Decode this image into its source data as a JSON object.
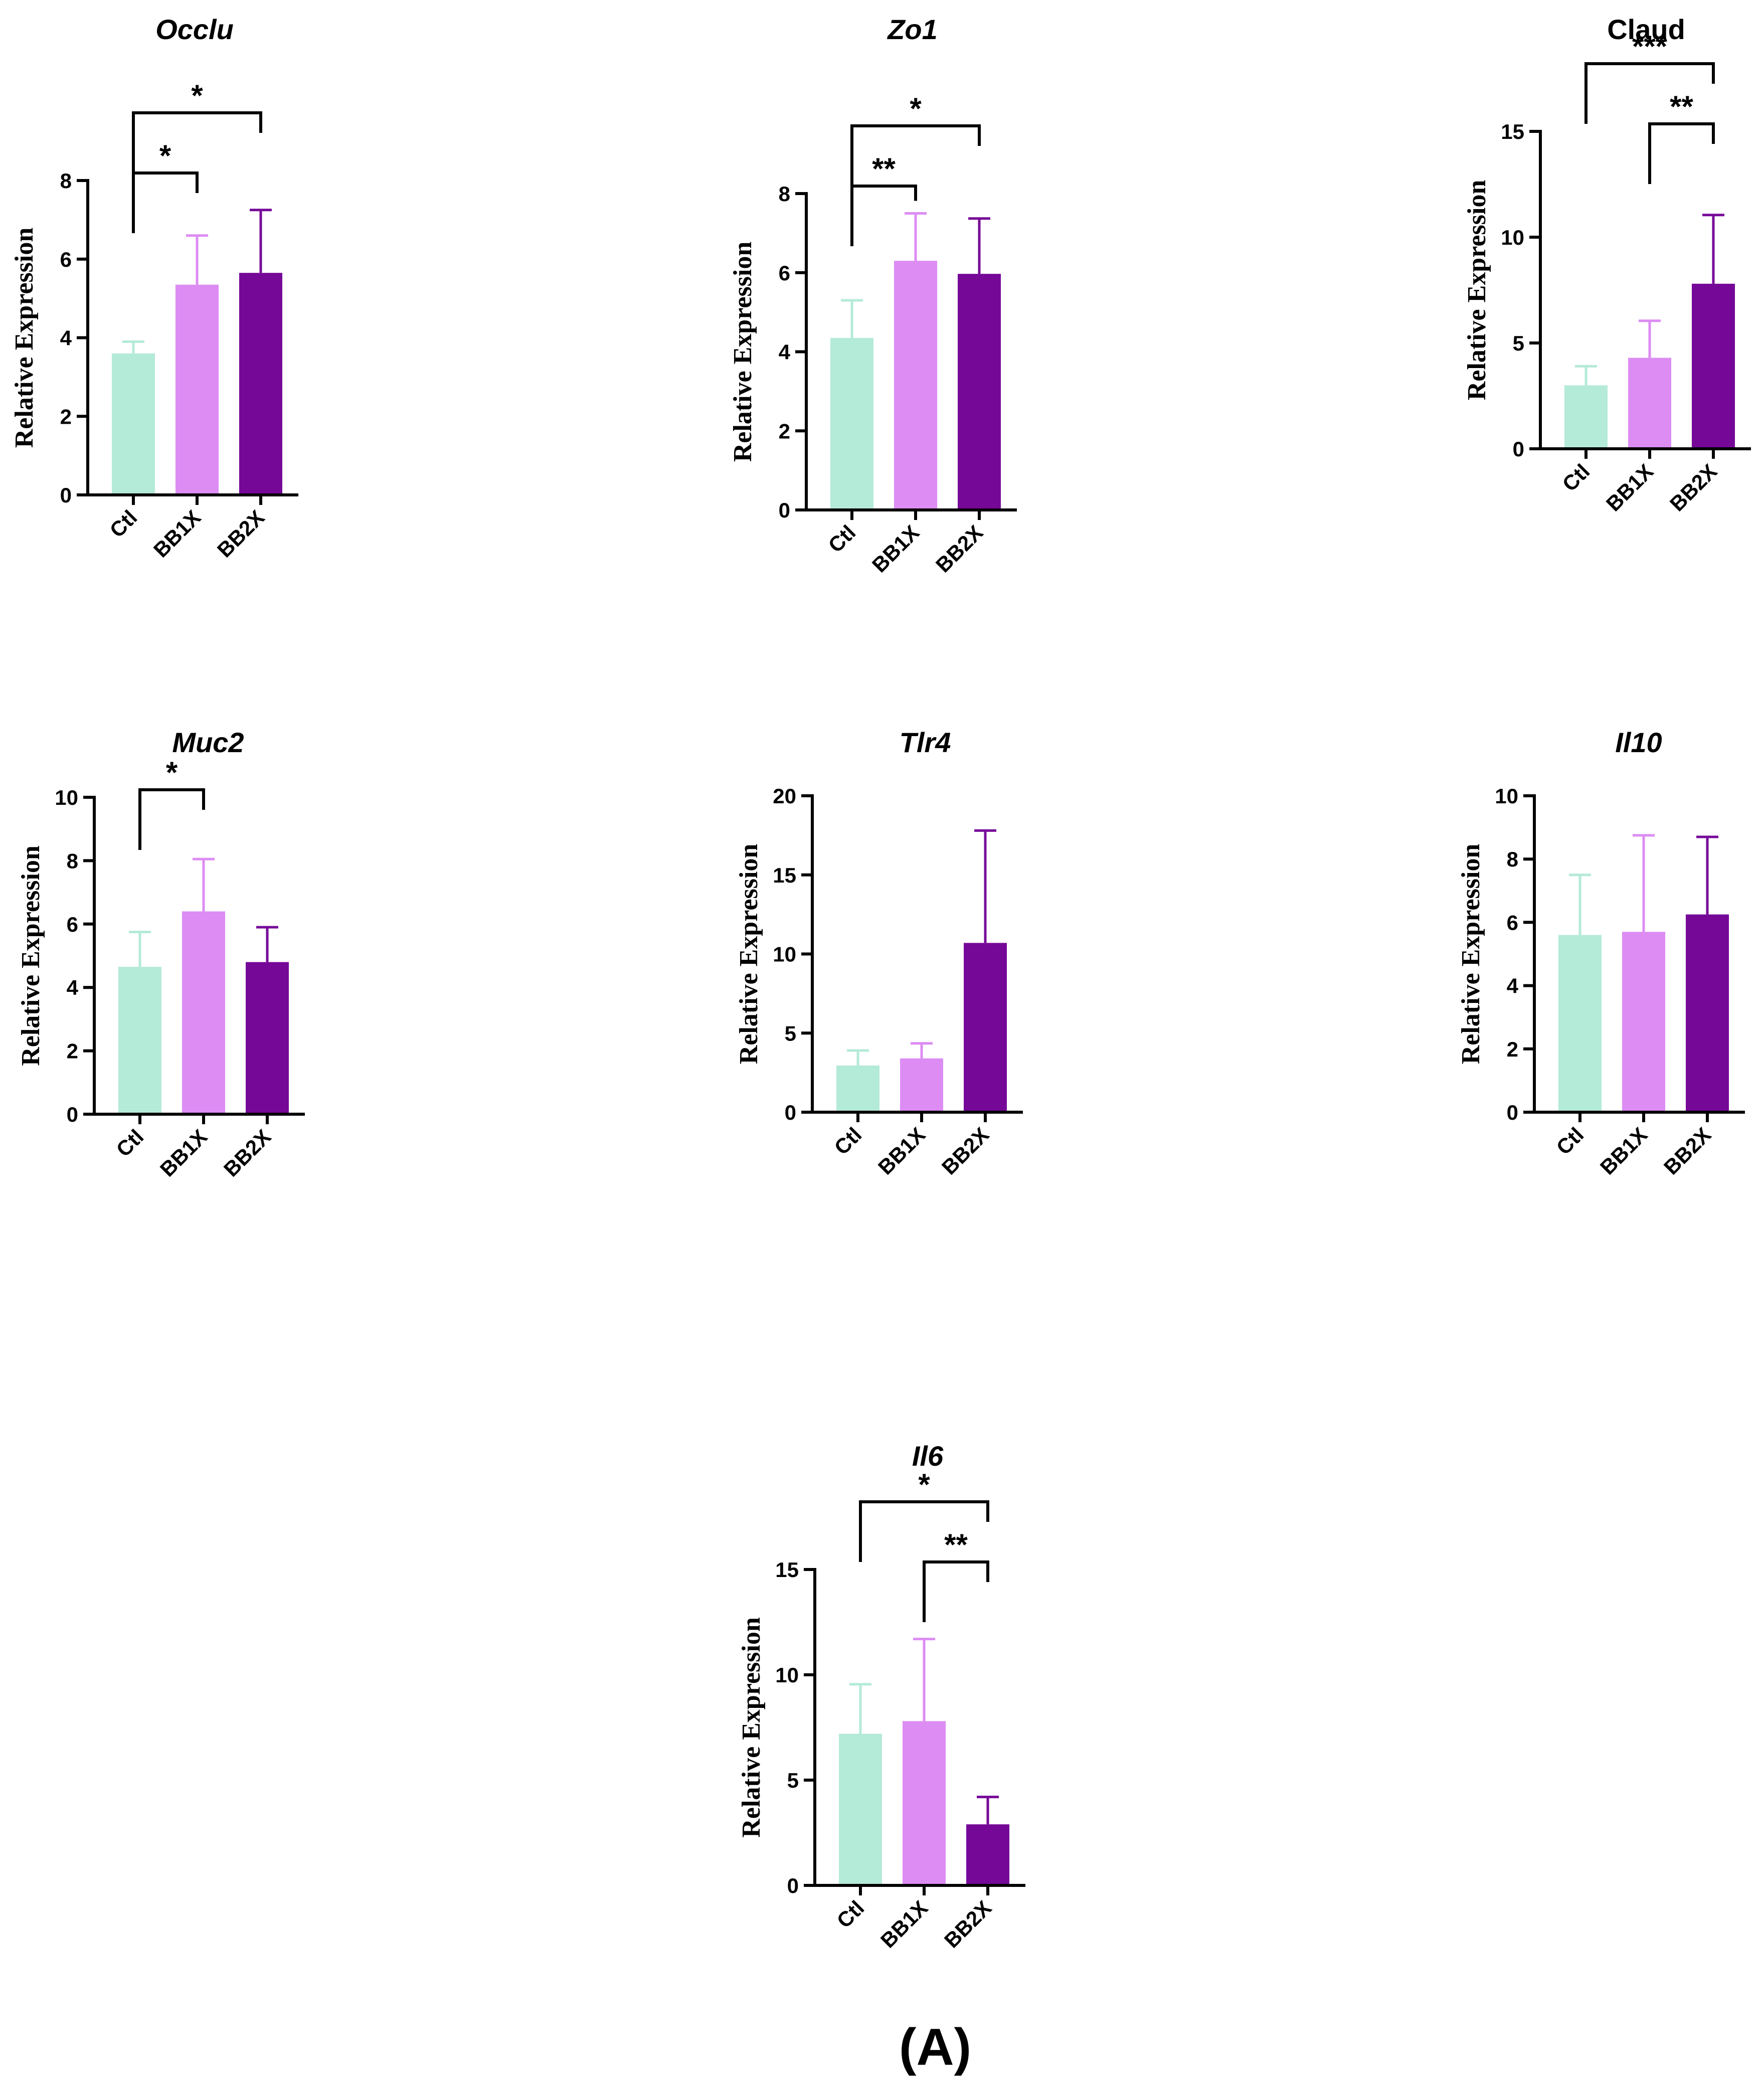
{
  "figure": {
    "panel_label": "(A)"
  },
  "colors": {
    "Ctl": "#b4ead8",
    "BB1X": "#dd8cf4",
    "BB2X": "#760898",
    "axis": "#000000"
  },
  "chart_data": [
    {
      "type": "bar",
      "title": "Occlu",
      "title_style": "italic",
      "ylabel": "Relative Expression",
      "categories": [
        "Ctl",
        "BB1X",
        "BB2X"
      ],
      "values": [
        3.6,
        5.35,
        5.65
      ],
      "errors": [
        0.3,
        1.25,
        1.6
      ],
      "ylim": [
        0,
        8
      ],
      "yticks": [
        0,
        2,
        4,
        6,
        8
      ],
      "ytick_labels": [
        "0",
        "2",
        "4",
        "6",
        "8"
      ],
      "significance": [
        {
          "from": "Ctl",
          "to": "BB1X",
          "label": "*"
        },
        {
          "from": "Ctl",
          "to": "BB2X",
          "label": "*"
        }
      ]
    },
    {
      "type": "bar",
      "title": "Zo1",
      "title_style": "italic",
      "ylabel": "Relative Expression",
      "categories": [
        "Ctl",
        "BB1X",
        "BB2X"
      ],
      "values": [
        4.35,
        6.3,
        5.97
      ],
      "errors": [
        0.95,
        1.2,
        1.4
      ],
      "ylim": [
        0,
        8
      ],
      "yticks": [
        0,
        2,
        4,
        6,
        8
      ],
      "ytick_labels": [
        "0",
        "2",
        "4",
        "6",
        "8"
      ],
      "significance": [
        {
          "from": "Ctl",
          "to": "BB1X",
          "label": "**"
        },
        {
          "from": "Ctl",
          "to": "BB2X",
          "label": "*"
        }
      ]
    },
    {
      "type": "bar",
      "title": "Claud",
      "title_style": "normal",
      "ylabel": "Relative Expression",
      "categories": [
        "Ctl",
        "BB1X",
        "BB2X"
      ],
      "values": [
        3.0,
        4.3,
        7.8
      ],
      "errors": [
        0.9,
        1.75,
        3.25
      ],
      "ylim": [
        0,
        15
      ],
      "yticks": [
        0,
        5,
        10,
        15
      ],
      "ytick_labels": [
        "0",
        "5",
        "10",
        "15"
      ],
      "significance": [
        {
          "from": "Ctl",
          "to": "BB2X",
          "label": "***"
        },
        {
          "from": "BB1X",
          "to": "BB2X",
          "label": "**"
        }
      ]
    },
    {
      "type": "bar",
      "title": "Muc2",
      "title_style": "italic",
      "ylabel": "Relative Expression",
      "categories": [
        "Ctl",
        "BB1X",
        "BB2X"
      ],
      "values": [
        4.65,
        6.4,
        4.8
      ],
      "errors": [
        1.1,
        1.65,
        1.1
      ],
      "ylim": [
        0,
        10
      ],
      "yticks": [
        0,
        2,
        4,
        6,
        8,
        10
      ],
      "ytick_labels": [
        "0",
        "2",
        "4",
        "6",
        "8",
        "10"
      ],
      "significance": [
        {
          "from": "Ctl",
          "to": "BB1X",
          "label": "*"
        }
      ]
    },
    {
      "type": "bar",
      "title": "Tlr4",
      "title_style": "italic",
      "ylabel": "Relative Expression",
      "categories": [
        "Ctl",
        "BB1X",
        "BB2X"
      ],
      "values": [
        2.95,
        3.4,
        10.7
      ],
      "errors": [
        0.95,
        0.95,
        7.1
      ],
      "ylim": [
        0,
        20
      ],
      "yticks": [
        0,
        5,
        10,
        15,
        20
      ],
      "ytick_labels": [
        "0",
        "5",
        "10",
        "15",
        "20"
      ],
      "significance": []
    },
    {
      "type": "bar",
      "title": "Il10",
      "title_style": "italic",
      "ylabel": "Relative Expression",
      "categories": [
        "Ctl",
        "BB1X",
        "BB2X"
      ],
      "values": [
        5.6,
        5.7,
        6.25
      ],
      "errors": [
        1.9,
        3.05,
        2.45
      ],
      "ylim": [
        0,
        10
      ],
      "yticks": [
        0,
        2,
        4,
        6,
        8,
        10
      ],
      "ytick_labels": [
        "0",
        "2",
        "4",
        "6",
        "8",
        "10"
      ],
      "significance": []
    },
    {
      "type": "bar",
      "title": "Il6",
      "title_style": "italic",
      "ylabel": "Relative Expression",
      "categories": [
        "Ctl",
        "BB1X",
        "BB2X"
      ],
      "values": [
        7.2,
        7.8,
        2.9
      ],
      "errors": [
        2.35,
        3.9,
        1.3
      ],
      "ylim": [
        0,
        15
      ],
      "yticks": [
        0,
        5,
        10,
        15
      ],
      "ytick_labels": [
        "0",
        "5",
        "10",
        "15"
      ],
      "significance": [
        {
          "from": "Ctl",
          "to": "BB2X",
          "label": "*"
        },
        {
          "from": "BB1X",
          "to": "BB2X",
          "label": "**"
        }
      ]
    }
  ]
}
